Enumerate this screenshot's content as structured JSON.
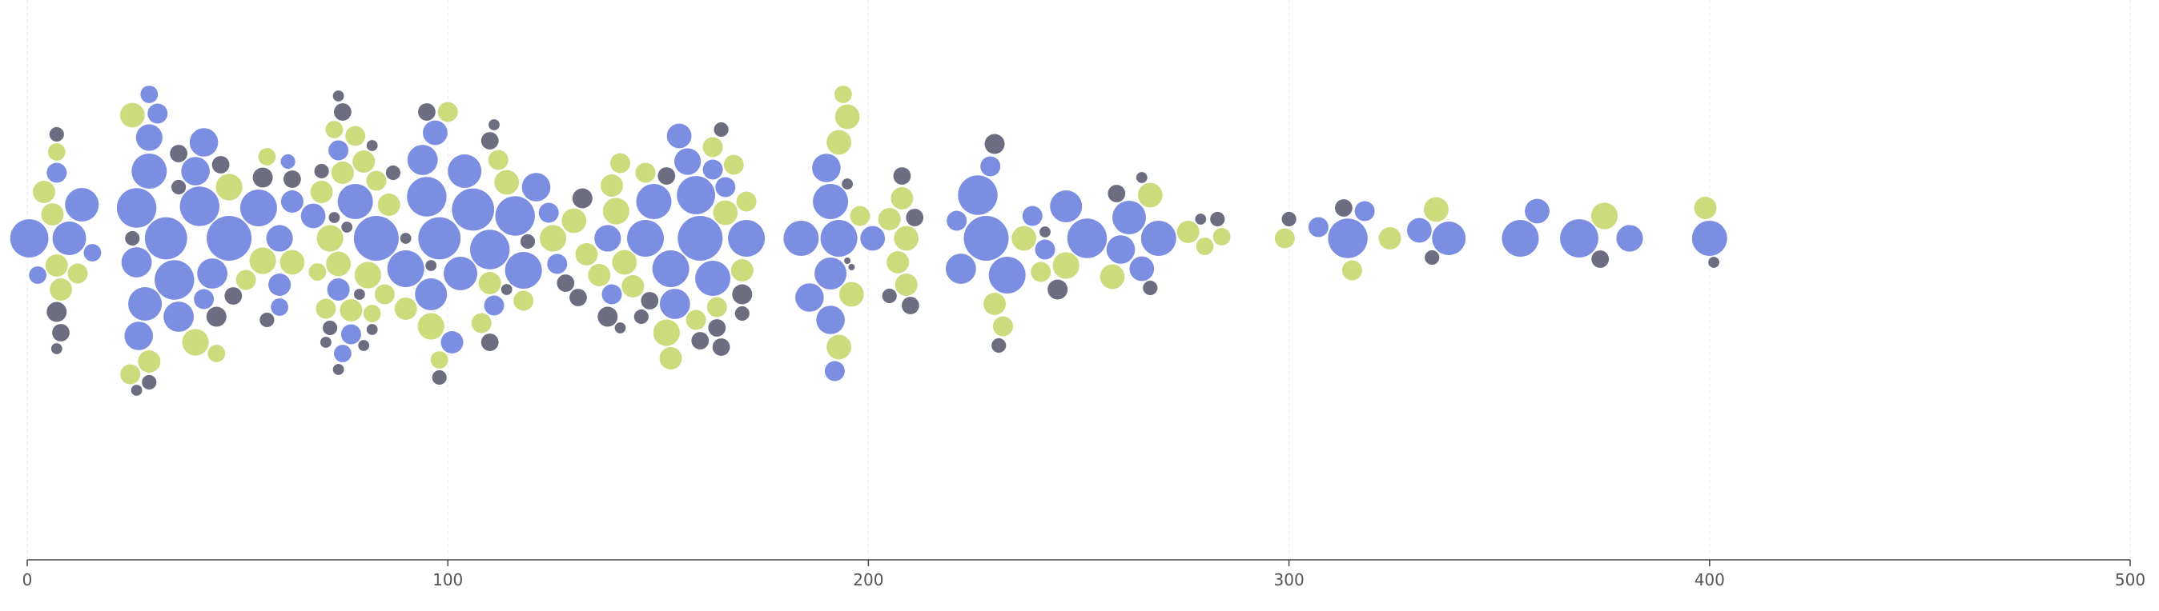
{
  "chart_data": {
    "type": "scatter",
    "subtype": "beeswarm-bubble",
    "title": "",
    "xlabel": "",
    "ylabel": "",
    "xlim": [
      0,
      500
    ],
    "x_ticks": [
      0,
      100,
      200,
      300,
      400,
      500
    ],
    "x_tick_labels": [
      "0",
      "100",
      "200",
      "300",
      "400",
      "500"
    ],
    "grid": {
      "vertical": true,
      "horizontal": false,
      "style": "dashed-light"
    },
    "legend": "none",
    "colors": {
      "blue": "#7b8ee1",
      "green": "#ccdc7c",
      "dark": "#6c6d80"
    },
    "size_scale": {
      "min_value": 1,
      "max_value": 20,
      "min_radius_px": 4,
      "max_radius_px": 28
    },
    "series": [
      {
        "color": "blue",
        "points": [
          [
            0.5,
            15
          ],
          [
            2.5,
            4
          ],
          [
            7,
            5
          ],
          [
            10,
            12
          ],
          [
            13,
            12
          ],
          [
            15.5,
            4
          ],
          [
            26,
            16
          ],
          [
            26.5,
            9
          ],
          [
            26,
            10
          ],
          [
            28,
            12
          ],
          [
            29,
            13
          ],
          [
            29,
            8
          ],
          [
            29,
            4
          ],
          [
            31,
            5
          ],
          [
            33,
            18
          ],
          [
            35,
            16
          ],
          [
            36,
            10
          ],
          [
            40,
            9
          ],
          [
            41,
            16
          ],
          [
            42,
            5
          ],
          [
            42,
            9
          ],
          [
            44,
            10
          ],
          [
            48,
            20
          ],
          [
            55,
            14
          ],
          [
            60,
            8
          ],
          [
            60,
            6
          ],
          [
            60,
            4
          ],
          [
            62,
            3
          ],
          [
            63,
            6
          ],
          [
            68,
            7
          ],
          [
            74,
            5
          ],
          [
            74,
            6
          ],
          [
            75,
            4
          ],
          [
            77,
            5
          ],
          [
            78,
            13
          ],
          [
            83,
            20
          ],
          [
            90,
            14
          ],
          [
            94,
            10
          ],
          [
            95,
            16
          ],
          [
            96,
            11
          ],
          [
            97,
            7
          ],
          [
            98,
            18
          ],
          [
            101,
            6
          ],
          [
            103,
            12
          ],
          [
            104,
            12
          ],
          [
            106,
            18
          ],
          [
            110,
            16
          ],
          [
            111,
            5
          ],
          [
            116,
            16
          ],
          [
            118,
            14
          ],
          [
            121,
            9
          ],
          [
            124,
            5
          ],
          [
            126,
            5
          ],
          [
            138,
            8
          ],
          [
            139,
            5
          ],
          [
            147,
            14
          ],
          [
            149,
            13
          ],
          [
            153,
            14
          ],
          [
            154,
            10
          ],
          [
            155,
            7
          ],
          [
            157,
            8
          ],
          [
            159,
            15
          ],
          [
            160,
            20
          ],
          [
            163,
            5
          ],
          [
            163,
            13
          ],
          [
            166,
            5
          ],
          [
            171,
            14
          ],
          [
            184,
            13
          ],
          [
            186,
            9
          ],
          [
            190,
            9
          ],
          [
            191,
            11
          ],
          [
            191,
            9
          ],
          [
            191,
            13
          ],
          [
            192,
            5
          ],
          [
            193,
            14
          ],
          [
            201,
            7
          ],
          [
            221,
            5
          ],
          [
            222,
            10
          ],
          [
            226,
            16
          ],
          [
            228,
            20
          ],
          [
            229,
            5
          ],
          [
            233,
            14
          ],
          [
            239,
            5
          ],
          [
            242,
            5
          ],
          [
            247,
            11
          ],
          [
            252,
            16
          ],
          [
            260,
            9
          ],
          [
            262,
            12
          ],
          [
            265,
            7
          ],
          [
            269,
            13
          ],
          [
            307,
            5
          ],
          [
            314,
            16
          ],
          [
            318,
            5
          ],
          [
            331,
            7
          ],
          [
            338,
            12
          ],
          [
            355,
            14
          ],
          [
            359,
            7
          ],
          [
            369,
            15
          ],
          [
            381,
            8
          ],
          [
            400,
            13
          ]
        ]
      },
      {
        "color": "green",
        "points": [
          [
            6,
            6
          ],
          [
            7,
            6
          ],
          [
            7,
            4
          ],
          [
            8,
            6
          ],
          [
            4,
            6
          ],
          [
            12,
            5
          ],
          [
            24.5,
            5
          ],
          [
            25,
            7
          ],
          [
            29,
            6
          ],
          [
            40,
            8
          ],
          [
            45,
            4
          ],
          [
            48,
            8
          ],
          [
            52,
            5
          ],
          [
            56,
            8
          ],
          [
            57,
            4
          ],
          [
            63,
            7
          ],
          [
            69,
            4
          ],
          [
            70,
            6
          ],
          [
            71,
            5
          ],
          [
            72,
            8
          ],
          [
            73,
            4
          ],
          [
            74,
            7
          ],
          [
            75,
            6
          ],
          [
            77,
            6
          ],
          [
            78,
            5
          ],
          [
            80,
            6
          ],
          [
            81,
            8
          ],
          [
            82,
            4
          ],
          [
            83,
            5
          ],
          [
            85,
            5
          ],
          [
            86,
            6
          ],
          [
            90,
            6
          ],
          [
            96,
            8
          ],
          [
            98,
            4
          ],
          [
            100,
            5
          ],
          [
            108,
            5
          ],
          [
            110,
            6
          ],
          [
            112,
            5
          ],
          [
            114,
            7
          ],
          [
            118,
            5
          ],
          [
            125,
            8
          ],
          [
            130,
            7
          ],
          [
            133,
            6
          ],
          [
            136,
            6
          ],
          [
            139,
            6
          ],
          [
            140,
            8
          ],
          [
            141,
            5
          ],
          [
            142,
            7
          ],
          [
            144,
            6
          ],
          [
            147,
            5
          ],
          [
            152,
            8
          ],
          [
            153,
            6
          ],
          [
            159,
            5
          ],
          [
            163,
            5
          ],
          [
            164,
            5
          ],
          [
            166,
            7
          ],
          [
            168,
            5
          ],
          [
            170,
            6
          ],
          [
            171,
            5
          ],
          [
            193,
            7
          ],
          [
            193,
            7
          ],
          [
            194,
            4
          ],
          [
            195,
            7
          ],
          [
            196,
            7
          ],
          [
            198,
            5
          ],
          [
            205,
            6
          ],
          [
            207,
            6
          ],
          [
            208,
            6
          ],
          [
            209,
            7
          ],
          [
            209,
            6
          ],
          [
            230,
            6
          ],
          [
            232,
            5
          ],
          [
            237,
            7
          ],
          [
            241,
            5
          ],
          [
            247,
            8
          ],
          [
            258,
            7
          ],
          [
            267,
            7
          ],
          [
            276,
            6
          ],
          [
            280,
            4
          ],
          [
            284,
            4
          ],
          [
            299,
            5
          ],
          [
            315,
            5
          ],
          [
            324,
            6
          ],
          [
            335,
            7
          ],
          [
            375,
            8
          ],
          [
            399,
            6
          ]
        ]
      },
      {
        "color": "dark",
        "points": [
          [
            7,
            5
          ],
          [
            7,
            3
          ],
          [
            7,
            2
          ],
          [
            8,
            4
          ],
          [
            25,
            3
          ],
          [
            26,
            2
          ],
          [
            29,
            3
          ],
          [
            36,
            4
          ],
          [
            36,
            3
          ],
          [
            45,
            5
          ],
          [
            46,
            4
          ],
          [
            49,
            4
          ],
          [
            56,
            5
          ],
          [
            57,
            3
          ],
          [
            63,
            4
          ],
          [
            70,
            3
          ],
          [
            71,
            2
          ],
          [
            72,
            3
          ],
          [
            73,
            2
          ],
          [
            74,
            2
          ],
          [
            74,
            2
          ],
          [
            75,
            4
          ],
          [
            76,
            2
          ],
          [
            79,
            2
          ],
          [
            80,
            2
          ],
          [
            82,
            2
          ],
          [
            82,
            2
          ],
          [
            87,
            3
          ],
          [
            90,
            2
          ],
          [
            95,
            4
          ],
          [
            96,
            2
          ],
          [
            98,
            3
          ],
          [
            110,
            4
          ],
          [
            110,
            4
          ],
          [
            111,
            2
          ],
          [
            114,
            2
          ],
          [
            119,
            3
          ],
          [
            128,
            4
          ],
          [
            131,
            4
          ],
          [
            132,
            5
          ],
          [
            138,
            5
          ],
          [
            141,
            2
          ],
          [
            146,
            3
          ],
          [
            148,
            4
          ],
          [
            152,
            4
          ],
          [
            160,
            4
          ],
          [
            164,
            4
          ],
          [
            165,
            4
          ],
          [
            165,
            3
          ],
          [
            170,
            3
          ],
          [
            170,
            5
          ],
          [
            195,
            2
          ],
          [
            195,
            1
          ],
          [
            196,
            1
          ],
          [
            205,
            3
          ],
          [
            208,
            4
          ],
          [
            210,
            4
          ],
          [
            211,
            4
          ],
          [
            230,
            5
          ],
          [
            231,
            3
          ],
          [
            242,
            2
          ],
          [
            245,
            5
          ],
          [
            259,
            4
          ],
          [
            265,
            2
          ],
          [
            267,
            3
          ],
          [
            279,
            2
          ],
          [
            283,
            3
          ],
          [
            300,
            3
          ],
          [
            313,
            4
          ],
          [
            334,
            3
          ],
          [
            374,
            4
          ],
          [
            401,
            2
          ]
        ]
      }
    ]
  }
}
